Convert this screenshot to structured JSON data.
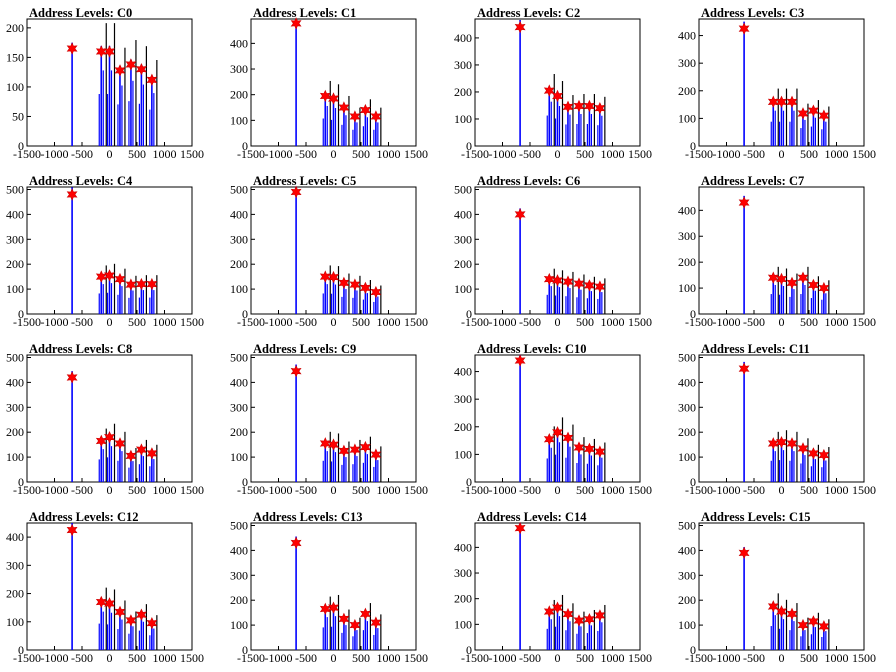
{
  "x_tick_labels": [
    "-1500",
    "-1000",
    "-500",
    "0",
    "500",
    "1000",
    "1500"
  ],
  "colors": {
    "hist": "#0000ff",
    "spike": "#000000",
    "marker": "#ff0000"
  },
  "chart_data": [
    {
      "type": "bar",
      "title": "Address Levels: C0",
      "xlim": [
        -1500,
        1500
      ],
      "ylim": [
        0,
        215
      ],
      "yticks": [
        0,
        50,
        100,
        150,
        200
      ],
      "peaks": [
        {
          "x": -680,
          "y": 165
        },
        {
          "x": -150,
          "y": 160
        },
        {
          "x": 0,
          "y": 160
        },
        {
          "x": 190,
          "y": 128
        },
        {
          "x": 390,
          "y": 138
        },
        {
          "x": 580,
          "y": 130
        },
        {
          "x": 770,
          "y": 112
        }
      ]
    },
    {
      "type": "bar",
      "title": "Address Levels: C1",
      "xlim": [
        -1500,
        1500
      ],
      "ylim": [
        0,
        495
      ],
      "yticks": [
        0,
        100,
        200,
        300,
        400
      ],
      "peaks": [
        {
          "x": -680,
          "y": 478
        },
        {
          "x": -150,
          "y": 195
        },
        {
          "x": 0,
          "y": 185
        },
        {
          "x": 190,
          "y": 150
        },
        {
          "x": 390,
          "y": 115
        },
        {
          "x": 580,
          "y": 140
        },
        {
          "x": 770,
          "y": 115
        }
      ]
    },
    {
      "type": "bar",
      "title": "Address Levels: C2",
      "xlim": [
        -1500,
        1500
      ],
      "ylim": [
        0,
        470
      ],
      "yticks": [
        0,
        100,
        200,
        300,
        400
      ],
      "peaks": [
        {
          "x": -680,
          "y": 440
        },
        {
          "x": -150,
          "y": 205
        },
        {
          "x": 0,
          "y": 185
        },
        {
          "x": 190,
          "y": 145
        },
        {
          "x": 390,
          "y": 148
        },
        {
          "x": 580,
          "y": 148
        },
        {
          "x": 770,
          "y": 140
        }
      ]
    },
    {
      "type": "bar",
      "title": "Address Levels: C3",
      "xlim": [
        -1500,
        1500
      ],
      "ylim": [
        0,
        460
      ],
      "yticks": [
        0,
        100,
        200,
        300,
        400
      ],
      "peaks": [
        {
          "x": -680,
          "y": 425
        },
        {
          "x": -150,
          "y": 160
        },
        {
          "x": 0,
          "y": 160
        },
        {
          "x": 190,
          "y": 160
        },
        {
          "x": 390,
          "y": 118
        },
        {
          "x": 580,
          "y": 128
        },
        {
          "x": 770,
          "y": 110
        }
      ]
    },
    {
      "type": "bar",
      "title": "Address Levels: C4",
      "xlim": [
        -1500,
        1500
      ],
      "ylim": [
        0,
        510
      ],
      "yticks": [
        0,
        100,
        200,
        300,
        400,
        500
      ],
      "peaks": [
        {
          "x": -680,
          "y": 480
        },
        {
          "x": -150,
          "y": 150
        },
        {
          "x": 0,
          "y": 155
        },
        {
          "x": 190,
          "y": 140
        },
        {
          "x": 390,
          "y": 118
        },
        {
          "x": 580,
          "y": 120
        },
        {
          "x": 770,
          "y": 120
        }
      ]
    },
    {
      "type": "bar",
      "title": "Address Levels: C5",
      "xlim": [
        -1500,
        1500
      ],
      "ylim": [
        0,
        510
      ],
      "yticks": [
        0,
        100,
        200,
        300,
        400,
        500
      ],
      "peaks": [
        {
          "x": -680,
          "y": 490
        },
        {
          "x": -150,
          "y": 150
        },
        {
          "x": 0,
          "y": 148
        },
        {
          "x": 190,
          "y": 125
        },
        {
          "x": 390,
          "y": 118
        },
        {
          "x": 580,
          "y": 105
        },
        {
          "x": 770,
          "y": 88
        }
      ]
    },
    {
      "type": "bar",
      "title": "Address Levels: C6",
      "xlim": [
        -1500,
        1500
      ],
      "ylim": [
        0,
        510
      ],
      "yticks": [
        0,
        100,
        200,
        300,
        400,
        500
      ],
      "peaks": [
        {
          "x": -680,
          "y": 400
        },
        {
          "x": -150,
          "y": 140
        },
        {
          "x": 0,
          "y": 135
        },
        {
          "x": 190,
          "y": 130
        },
        {
          "x": 390,
          "y": 122
        },
        {
          "x": 580,
          "y": 115
        },
        {
          "x": 770,
          "y": 110
        }
      ]
    },
    {
      "type": "bar",
      "title": "Address Levels: C7",
      "xlim": [
        -1500,
        1500
      ],
      "ylim": [
        0,
        490
      ],
      "yticks": [
        0,
        100,
        200,
        300,
        400
      ],
      "peaks": [
        {
          "x": -680,
          "y": 430
        },
        {
          "x": -150,
          "y": 140
        },
        {
          "x": 0,
          "y": 135
        },
        {
          "x": 190,
          "y": 120
        },
        {
          "x": 390,
          "y": 140
        },
        {
          "x": 580,
          "y": 112
        },
        {
          "x": 770,
          "y": 100
        }
      ]
    },
    {
      "type": "bar",
      "title": "Address Levels: C8",
      "xlim": [
        -1500,
        1500
      ],
      "ylim": [
        0,
        510
      ],
      "yticks": [
        0,
        100,
        200,
        300,
        400,
        500
      ],
      "peaks": [
        {
          "x": -680,
          "y": 420
        },
        {
          "x": -150,
          "y": 165
        },
        {
          "x": 0,
          "y": 180
        },
        {
          "x": 190,
          "y": 155
        },
        {
          "x": 390,
          "y": 105
        },
        {
          "x": 580,
          "y": 130
        },
        {
          "x": 770,
          "y": 115
        }
      ]
    },
    {
      "type": "bar",
      "title": "Address Levels: C9",
      "xlim": [
        -1500,
        1500
      ],
      "ylim": [
        0,
        510
      ],
      "yticks": [
        0,
        100,
        200,
        300,
        400,
        500
      ],
      "peaks": [
        {
          "x": -680,
          "y": 445
        },
        {
          "x": -150,
          "y": 155
        },
        {
          "x": 0,
          "y": 150
        },
        {
          "x": 190,
          "y": 125
        },
        {
          "x": 390,
          "y": 130
        },
        {
          "x": 580,
          "y": 140
        },
        {
          "x": 770,
          "y": 110
        }
      ]
    },
    {
      "type": "bar",
      "title": "Address Levels: C10",
      "xlim": [
        -1500,
        1500
      ],
      "ylim": [
        0,
        460
      ],
      "yticks": [
        0,
        100,
        200,
        300,
        400
      ],
      "peaks": [
        {
          "x": -680,
          "y": 440
        },
        {
          "x": -150,
          "y": 155
        },
        {
          "x": 0,
          "y": 180
        },
        {
          "x": 190,
          "y": 160
        },
        {
          "x": 390,
          "y": 125
        },
        {
          "x": 580,
          "y": 120
        },
        {
          "x": 770,
          "y": 110
        }
      ]
    },
    {
      "type": "bar",
      "title": "Address Levels: C11",
      "xlim": [
        -1500,
        1500
      ],
      "ylim": [
        0,
        510
      ],
      "yticks": [
        0,
        100,
        200,
        300,
        400,
        500
      ],
      "peaks": [
        {
          "x": -680,
          "y": 455
        },
        {
          "x": -150,
          "y": 155
        },
        {
          "x": 0,
          "y": 160
        },
        {
          "x": 190,
          "y": 155
        },
        {
          "x": 390,
          "y": 135
        },
        {
          "x": 580,
          "y": 115
        },
        {
          "x": 770,
          "y": 108
        }
      ]
    },
    {
      "type": "bar",
      "title": "Address Levels: C12",
      "xlim": [
        -1500,
        1500
      ],
      "ylim": [
        0,
        450
      ],
      "yticks": [
        0,
        100,
        200,
        300,
        400
      ],
      "peaks": [
        {
          "x": -680,
          "y": 425
        },
        {
          "x": -150,
          "y": 170
        },
        {
          "x": 0,
          "y": 165
        },
        {
          "x": 190,
          "y": 135
        },
        {
          "x": 390,
          "y": 105
        },
        {
          "x": 580,
          "y": 125
        },
        {
          "x": 770,
          "y": 95
        }
      ]
    },
    {
      "type": "bar",
      "title": "Address Levels: C13",
      "xlim": [
        -1500,
        1500
      ],
      "ylim": [
        0,
        510
      ],
      "yticks": [
        0,
        100,
        200,
        300,
        400,
        500
      ],
      "peaks": [
        {
          "x": -680,
          "y": 430
        },
        {
          "x": -150,
          "y": 165
        },
        {
          "x": 0,
          "y": 170
        },
        {
          "x": 190,
          "y": 125
        },
        {
          "x": 390,
          "y": 100
        },
        {
          "x": 580,
          "y": 145
        },
        {
          "x": 770,
          "y": 110
        }
      ]
    },
    {
      "type": "bar",
      "title": "Address Levels: C14",
      "xlim": [
        -1500,
        1500
      ],
      "ylim": [
        0,
        495
      ],
      "yticks": [
        0,
        100,
        200,
        300,
        400
      ],
      "peaks": [
        {
          "x": -680,
          "y": 475
        },
        {
          "x": -150,
          "y": 150
        },
        {
          "x": 0,
          "y": 165
        },
        {
          "x": 190,
          "y": 140
        },
        {
          "x": 390,
          "y": 115
        },
        {
          "x": 580,
          "y": 120
        },
        {
          "x": 770,
          "y": 135
        }
      ]
    },
    {
      "type": "bar",
      "title": "Address Levels: C15",
      "xlim": [
        -1500,
        1500
      ],
      "ylim": [
        0,
        510
      ],
      "yticks": [
        0,
        100,
        200,
        300,
        400,
        500
      ],
      "peaks": [
        {
          "x": -680,
          "y": 390
        },
        {
          "x": -150,
          "y": 175
        },
        {
          "x": 0,
          "y": 155
        },
        {
          "x": 190,
          "y": 145
        },
        {
          "x": 390,
          "y": 100
        },
        {
          "x": 580,
          "y": 115
        },
        {
          "x": 770,
          "y": 95
        }
      ]
    }
  ]
}
